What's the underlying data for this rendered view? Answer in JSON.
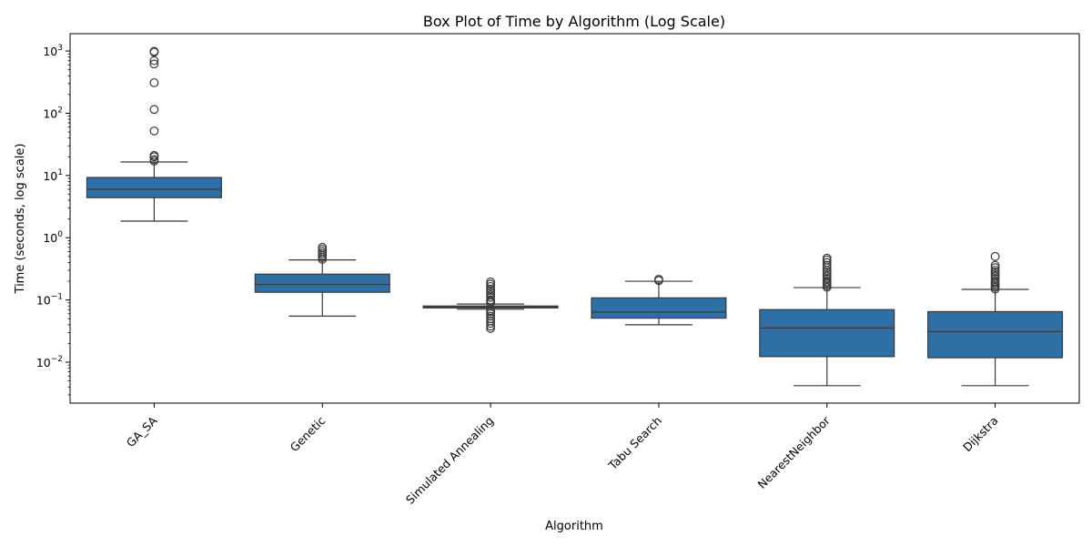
{
  "chart_data": {
    "type": "box",
    "title": "Box Plot of Time by Algorithm (Log Scale)",
    "xlabel": "Algorithm",
    "ylabel": "Time (seconds, log scale)",
    "yscale": "log",
    "ylim": [
      0.0022,
      1900
    ],
    "yticks": [
      {
        "value": 0.01,
        "base": "10",
        "exp": "−2"
      },
      {
        "value": 0.1,
        "base": "10",
        "exp": "−1"
      },
      {
        "value": 1,
        "base": "10",
        "exp": "0"
      },
      {
        "value": 10,
        "base": "10",
        "exp": "1"
      },
      {
        "value": 100,
        "base": "10",
        "exp": "2"
      },
      {
        "value": 1000,
        "base": "10",
        "exp": "3"
      }
    ],
    "grid": false,
    "box_color": "#2e6fa5",
    "categories": [
      "GA_SA",
      "Genetic",
      "Simulated Annealing",
      "Tabu Search",
      "NearestNeighbor",
      "Dijkstra"
    ],
    "boxes": [
      {
        "category": "GA_SA",
        "whisker_low": 1.85,
        "q1": 4.4,
        "median": 6.0,
        "q3": 9.3,
        "whisker_high": 16.5,
        "outliers": [
          17,
          18,
          20,
          21,
          52,
          115,
          310,
          620,
          700,
          960,
          990
        ]
      },
      {
        "category": "Genetic",
        "whisker_low": 0.055,
        "q1": 0.133,
        "median": 0.178,
        "q3": 0.26,
        "whisker_high": 0.44,
        "outliers": [
          0.45,
          0.48,
          0.52,
          0.56,
          0.6,
          0.65,
          0.7
        ]
      },
      {
        "category": "Simulated Annealing",
        "whisker_low": 0.071,
        "q1": 0.0745,
        "median": 0.0775,
        "q3": 0.08,
        "whisker_high": 0.086,
        "outliers": [
          0.035,
          0.038,
          0.042,
          0.046,
          0.05,
          0.055,
          0.06,
          0.065,
          0.068,
          0.09,
          0.095,
          0.1,
          0.11,
          0.12,
          0.13,
          0.14,
          0.15,
          0.165,
          0.18,
          0.195
        ]
      },
      {
        "category": "Tabu Search",
        "whisker_low": 0.04,
        "q1": 0.051,
        "median": 0.064,
        "q3": 0.108,
        "whisker_high": 0.2,
        "outliers": [
          0.205,
          0.215
        ]
      },
      {
        "category": "NearestNeighbor",
        "whisker_low": 0.0042,
        "q1": 0.0123,
        "median": 0.0355,
        "q3": 0.07,
        "whisker_high": 0.158,
        "outliers": [
          0.16,
          0.17,
          0.18,
          0.19,
          0.2,
          0.22,
          0.24,
          0.26,
          0.28,
          0.3,
          0.33,
          0.36,
          0.4,
          0.44,
          0.47
        ]
      },
      {
        "category": "Dijkstra",
        "whisker_low": 0.0042,
        "q1": 0.0118,
        "median": 0.031,
        "q3": 0.065,
        "whisker_high": 0.148,
        "outliers": [
          0.15,
          0.16,
          0.17,
          0.18,
          0.19,
          0.2,
          0.22,
          0.24,
          0.26,
          0.28,
          0.3,
          0.33,
          0.36,
          0.5
        ]
      }
    ]
  }
}
